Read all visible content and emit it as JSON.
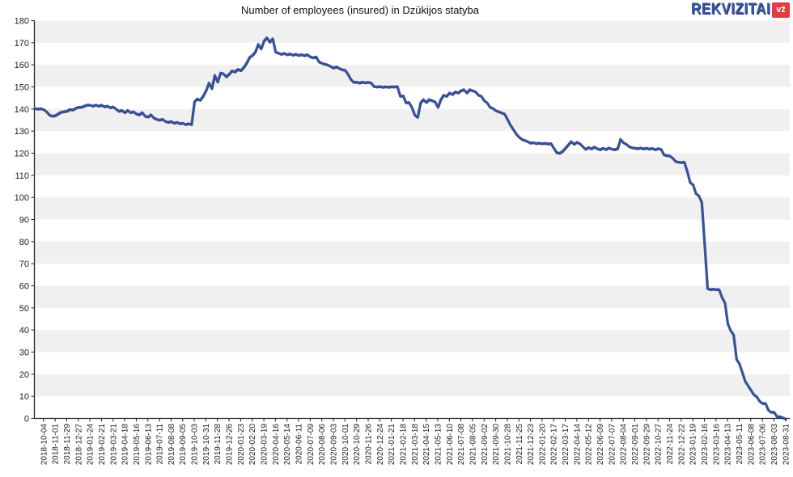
{
  "header": {
    "title": "Number of employees (insured) in Dzūkijos statyba",
    "brand": {
      "name": "REKVIZITAI",
      "badge": "vž"
    }
  },
  "chart_data": {
    "type": "line",
    "title": "Number of employees (insured) in Dzūkijos statyba",
    "series_name": "Number of employees (insured)",
    "grid": "horizontal-bands",
    "legend": "none",
    "ylim": [
      0,
      180
    ],
    "y_tick_step": 10,
    "y_tick_labels": [
      "180",
      "170",
      "160",
      "150",
      "140",
      "130",
      "120",
      "110",
      "100",
      "90",
      "80",
      "70",
      "60",
      "50",
      "40",
      "30",
      "20",
      "10",
      "0"
    ],
    "points_per_tick": 4,
    "x_tick_labels": [
      "2018-10-04",
      "2018-11-01",
      "2018-11-29",
      "2018-12-27",
      "2019-01-24",
      "2019-02-21",
      "2019-03-21",
      "2019-04-18",
      "2019-05-16",
      "2019-06-13",
      "2019-07-11",
      "2019-08-08",
      "2019-09-05",
      "2019-10-03",
      "2019-10-31",
      "2019-11-28",
      "2019-12-26",
      "2020-01-23",
      "2020-02-20",
      "2020-03-19",
      "2020-04-16",
      "2020-05-14",
      "2020-06-11",
      "2020-07-09",
      "2020-08-06",
      "2020-09-03",
      "2020-10-01",
      "2020-10-29",
      "2020-11-26",
      "2020-12-24",
      "2021-01-21",
      "2021-02-18",
      "2021-03-18",
      "2021-04-15",
      "2021-05-13",
      "2021-06-10",
      "2021-07-08",
      "2021-08-05",
      "2021-09-02",
      "2021-09-30",
      "2021-10-28",
      "2021-11-25",
      "2021-12-23",
      "2022-01-20",
      "2022-02-17",
      "2022-03-17",
      "2022-04-14",
      "2022-05-12",
      "2022-06-09",
      "2022-07-07",
      "2022-08-04",
      "2022-09-01",
      "2022-09-29",
      "2022-10-27",
      "2022-11-24",
      "2022-12-22",
      "2023-01-19",
      "2023-02-16",
      "2023-03-16",
      "2023-04-13",
      "2023-05-11",
      "2023-06-08",
      "2023-07-06",
      "2023-08-03",
      "2023-08-31"
    ],
    "lead_in_values": [
      140.5,
      140.2,
      140.4
    ],
    "values": [
      140,
      139,
      137.5,
      137,
      137.2,
      138,
      138.8,
      139,
      139.2,
      140,
      139.8,
      140.5,
      141,
      141,
      141.5,
      142,
      142,
      141.5,
      142,
      141.5,
      142,
      141.2,
      141.6,
      140.8,
      141.2,
      140.2,
      139.2,
      139.6,
      138.6,
      139.6,
      138.6,
      139,
      138,
      137.6,
      138.6,
      137,
      136.6,
      137.6,
      136.2,
      135.6,
      135.2,
      135.6,
      134.6,
      134.2,
      134.6,
      133.8,
      134.2,
      133.6,
      133.8,
      133.2,
      133.6,
      133.2,
      143.5,
      144.8,
      144.2,
      146,
      148.5,
      152,
      149.5,
      155.5,
      152.5,
      156.5,
      156.2,
      154.8,
      156,
      157.5,
      157,
      158.2,
      157.6,
      159,
      161,
      163.5,
      164.5,
      166,
      169.5,
      167.5,
      171,
      172.5,
      170.5,
      172,
      166,
      165.5,
      165,
      165.4,
      164.8,
      165.2,
      164.6,
      165,
      164.5,
      164.8,
      164.4,
      164.8,
      163.8,
      163.4,
      163.8,
      161.5,
      161,
      160.5,
      160.2,
      159.5,
      158.8,
      159.3,
      158.6,
      158,
      157.8,
      155.9,
      153.6,
      152.3,
      152.4,
      152,
      152.4,
      152.1,
      152.3,
      152,
      150.4,
      150.2,
      150.4,
      150.1,
      150.3,
      150.1,
      150.3,
      150.2,
      150.4,
      146,
      146.2,
      143,
      143.2,
      141,
      137.5,
      136.5,
      143,
      144.5,
      143.2,
      144.5,
      144,
      143.5,
      141,
      144.5,
      146.5,
      146,
      147.5,
      146.8,
      148,
      147.5,
      148.5,
      149,
      147.5,
      149,
      148.5,
      148,
      146.5,
      146,
      144,
      143,
      141,
      140.5,
      139.5,
      139,
      138.5,
      138,
      135.5,
      133,
      131,
      129,
      127.5,
      126.5,
      126,
      125.5,
      124.8,
      125,
      124.6,
      124.8,
      124.5,
      124.7,
      124.4,
      124.6,
      122.5,
      120.5,
      120.2,
      121,
      122.5,
      124,
      125.5,
      124.3,
      125.2,
      124.5,
      123.2,
      122,
      122.8,
      122.2,
      123,
      122.3,
      121.8,
      122.5,
      121.9,
      122.6,
      122.1,
      121.8,
      122.3,
      126.5,
      125,
      124.3,
      123.2,
      122.7,
      122.5,
      122.3,
      122.6,
      122.2,
      122.5,
      122.1,
      122.4,
      121.8,
      122.3,
      122,
      119.5,
      119.2,
      119,
      118,
      116.5,
      116.2,
      116,
      116.2,
      112,
      107,
      106,
      102,
      101,
      98,
      79,
      59,
      58.5,
      58.7,
      58.5,
      58.5,
      55,
      52.5,
      43,
      40,
      38,
      27,
      25,
      21,
      17,
      15,
      13,
      11,
      10,
      8,
      7,
      7,
      4,
      3,
      3,
      1,
      1,
      0.5,
      0
    ],
    "colors": {
      "line": "#3453a4",
      "line_edge": "#1b2f66",
      "band": "#f0f0f0",
      "background": "#ffffff",
      "axis": "#222222",
      "label": "#222222",
      "brand_blue": "#3a56a6",
      "brand_red": "#e23b41"
    }
  }
}
